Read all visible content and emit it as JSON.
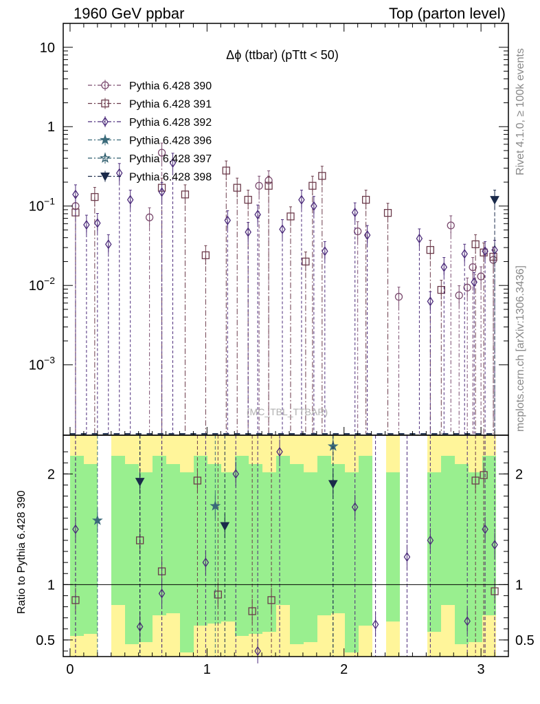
{
  "header": {
    "energy_label": "1960 GeV ppbar",
    "process_label": "Top (parton level)"
  },
  "side_labels": {
    "rivet": "Rivet 4.1.0, ≥ 100k events",
    "mcplots": "mcplots.cern.ch [arXiv:1306.3436]"
  },
  "chart_data": {
    "type": "line",
    "title": "Δϕ (ttbar) (pTtt < 50)",
    "watermark": "(MC_TBL_TTBAR)",
    "xlabel": "",
    "ylabel_main": "",
    "ylabel_ratio": "Ratio to Pythia 6.428 390",
    "xlim": [
      -0.05,
      3.2
    ],
    "ylim_main": [
      0.00013,
      20
    ],
    "ylim_ratio": [
      0.35,
      2.35
    ],
    "yscale_main": "log",
    "x_ticks": [
      {
        "v": 0,
        "t": "0"
      },
      {
        "v": 1,
        "t": "1"
      },
      {
        "v": 2,
        "t": "2"
      },
      {
        "v": 3,
        "t": "3"
      }
    ],
    "y_ticks_main": [
      {
        "v": 10,
        "base": "10",
        "exp": ""
      },
      {
        "v": 1,
        "base": "1",
        "exp": ""
      },
      {
        "v": 0.1,
        "base": "10",
        "exp": "−1"
      },
      {
        "v": 0.01,
        "base": "10",
        "exp": "−2"
      },
      {
        "v": 0.001,
        "base": "10",
        "exp": "−3"
      }
    ],
    "y_ticks_ratio": [
      {
        "v": 2,
        "t": "2"
      },
      {
        "v": 1,
        "t": "1"
      },
      {
        "v": 0.5,
        "t": "0.5"
      }
    ],
    "series": [
      {
        "name": "Pythia 6.428 390",
        "color": "#7a4a6e",
        "marker": "circle",
        "points": [
          [
            0.04,
            0.1
          ],
          [
            0.58,
            0.072
          ],
          [
            0.67,
            0.47
          ],
          [
            1.38,
            0.18
          ],
          [
            1.45,
            0.21
          ],
          [
            2.1,
            0.048
          ],
          [
            2.4,
            0.0072
          ],
          [
            2.78,
            0.057
          ],
          [
            2.84,
            0.0075
          ],
          [
            2.9,
            0.0094
          ],
          [
            2.94,
            0.017
          ],
          [
            3.0,
            0.013
          ],
          [
            3.09,
            0.021
          ]
        ]
      },
      {
        "name": "Pythia 6.428 391",
        "color": "#6b3a4a",
        "marker": "square",
        "points": [
          [
            0.04,
            0.083
          ],
          [
            0.18,
            0.13
          ],
          [
            0.52,
            0.0
          ],
          [
            0.67,
            0.17
          ],
          [
            0.84,
            0.14
          ],
          [
            0.99,
            0.024
          ],
          [
            1.14,
            0.28
          ],
          [
            1.22,
            0.17
          ],
          [
            1.3,
            0.12
          ],
          [
            1.45,
            0.18
          ],
          [
            1.61,
            0.074
          ],
          [
            1.72,
            0.02
          ],
          [
            1.77,
            0.18
          ],
          [
            1.84,
            0.24
          ],
          [
            2.16,
            0.12
          ],
          [
            2.32,
            0.082
          ],
          [
            2.63,
            0.028
          ],
          [
            2.71,
            0.0088
          ],
          [
            2.96,
            0.033
          ],
          [
            3.02,
            0.026
          ],
          [
            3.09,
            0.023
          ]
        ]
      },
      {
        "name": "Pythia 6.428 392",
        "color": "#4b2a7a",
        "marker": "diamond",
        "points": [
          [
            0.04,
            0.14
          ],
          [
            0.12,
            0.058
          ],
          [
            0.2,
            0.061
          ],
          [
            0.28,
            0.033
          ],
          [
            0.36,
            0.26
          ],
          [
            0.44,
            0.12
          ],
          [
            0.67,
            0.15
          ],
          [
            0.75,
            0.35
          ],
          [
            1.15,
            0.066
          ],
          [
            1.3,
            0.047
          ],
          [
            1.37,
            0.078
          ],
          [
            1.55,
            0.051
          ],
          [
            1.69,
            0.12
          ],
          [
            1.78,
            0.1
          ],
          [
            1.86,
            0.027
          ],
          [
            2.08,
            0.083
          ],
          [
            2.17,
            0.043
          ],
          [
            2.55,
            0.039
          ],
          [
            2.63,
            0.0063
          ],
          [
            2.73,
            0.017
          ],
          [
            2.88,
            0.025
          ],
          [
            2.95,
            0.011
          ],
          [
            3.03,
            0.027
          ],
          [
            3.1,
            0.028
          ]
        ]
      },
      {
        "name": "Pythia 6.428 396",
        "color": "#3a6a7a",
        "marker": "star",
        "points": []
      },
      {
        "name": "Pythia 6.428 397",
        "color": "#2a5a6a",
        "marker": "star-open",
        "points": []
      },
      {
        "name": "Pythia 6.428 398",
        "color": "#1a2a4a",
        "marker": "triangle-down",
        "points": [
          [
            3.1,
            0.12
          ]
        ]
      }
    ],
    "ratio_series": [
      {
        "name": "Pythia 6.428 391",
        "marker": "square",
        "points": [
          [
            0.04,
            0.86
          ],
          [
            0.51,
            1.4
          ],
          [
            0.67,
            1.12
          ],
          [
            0.93,
            1.94
          ],
          [
            1.08,
            0.91
          ],
          [
            1.33,
            0.76
          ],
          [
            1.47,
            0.86
          ],
          [
            2.96,
            1.94
          ],
          [
            3.02,
            1.99
          ],
          [
            3.1,
            0.94
          ]
        ]
      },
      {
        "name": "Pythia 6.428 392",
        "marker": "diamond",
        "points": [
          [
            0.04,
            1.5
          ],
          [
            0.51,
            0.62
          ],
          [
            0.67,
            0.92
          ],
          [
            0.99,
            1.2
          ],
          [
            1.21,
            2.0
          ],
          [
            1.37,
            0.4
          ],
          [
            1.53,
            2.2
          ],
          [
            2.08,
            1.7
          ],
          [
            2.23,
            0.64
          ],
          [
            2.46,
            1.25
          ],
          [
            2.63,
            1.4
          ],
          [
            2.9,
            0.67
          ],
          [
            3.03,
            1.5
          ],
          [
            3.1,
            1.36
          ]
        ]
      },
      {
        "name": "Pythia 6.428 396",
        "marker": "star",
        "points": [
          [
            0.2,
            1.58
          ],
          [
            1.06,
            1.71
          ],
          [
            1.92,
            2.25
          ]
        ]
      },
      {
        "name": "Pythia 6.428 398",
        "marker": "triangle-down",
        "points": [
          [
            0.51,
            1.93
          ],
          [
            1.13,
            1.53
          ],
          [
            1.92,
            1.91
          ]
        ]
      }
    ]
  }
}
